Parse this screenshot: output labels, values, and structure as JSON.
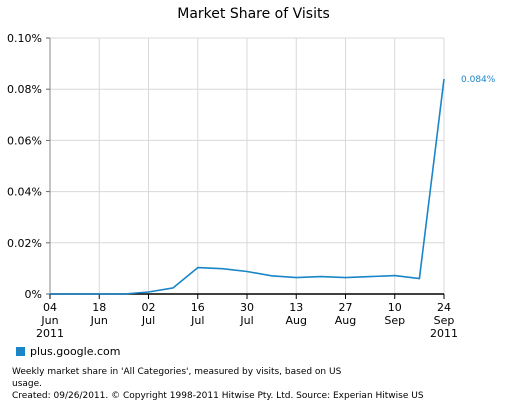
{
  "chart_data": {
    "type": "line",
    "title": "Market Share of Visits",
    "x": [
      "04 Jun 2011",
      "11 Jun 2011",
      "18 Jun 2011",
      "25 Jun 2011",
      "02 Jul 2011",
      "09 Jul 2011",
      "16 Jul 2011",
      "23 Jul 2011",
      "30 Jul 2011",
      "06 Aug 2011",
      "13 Aug 2011",
      "20 Aug 2011",
      "27 Aug 2011",
      "03 Sep 2011",
      "10 Sep 2011",
      "17 Sep 2011",
      "24 Sep 2011"
    ],
    "x_tick_labels": [
      {
        "lines": [
          "04",
          "Jun",
          "2011"
        ]
      },
      {
        "lines": [
          "18",
          "Jun"
        ]
      },
      {
        "lines": [
          "02",
          "Jul"
        ]
      },
      {
        "lines": [
          "16",
          "Jul"
        ]
      },
      {
        "lines": [
          "30",
          "Jul"
        ]
      },
      {
        "lines": [
          "13",
          "Aug"
        ]
      },
      {
        "lines": [
          "27",
          "Aug"
        ]
      },
      {
        "lines": [
          "10",
          "Sep"
        ]
      },
      {
        "lines": [
          "24",
          "Sep",
          "2011"
        ]
      }
    ],
    "y_ticks": [
      "0%",
      "0.02%",
      "0.04%",
      "0.06%",
      "0.08%",
      "0.10%"
    ],
    "ylim": [
      0,
      0.1
    ],
    "grid": true,
    "series": [
      {
        "name": "plus.google.com",
        "color": "#1a86c8",
        "values": [
          0,
          0,
          0,
          0,
          0.0008,
          0.0024,
          0.0103,
          0.0099,
          0.0088,
          0.0071,
          0.0064,
          0.0068,
          0.0064,
          0.0068,
          0.0072,
          0.006,
          0.084
        ]
      }
    ],
    "end_label": "0.084%"
  },
  "legend": {
    "label": "plus.google.com",
    "color": "#1a86c8"
  },
  "footnote": {
    "line1": "Weekly market share in 'All Categories', measured by visits, based on US",
    "line2": "usage.",
    "line3": "Created: 09/26/2011. © Copyright 1998-2011 Hitwise Pty. Ltd.     Source: Experian Hitwise US"
  }
}
